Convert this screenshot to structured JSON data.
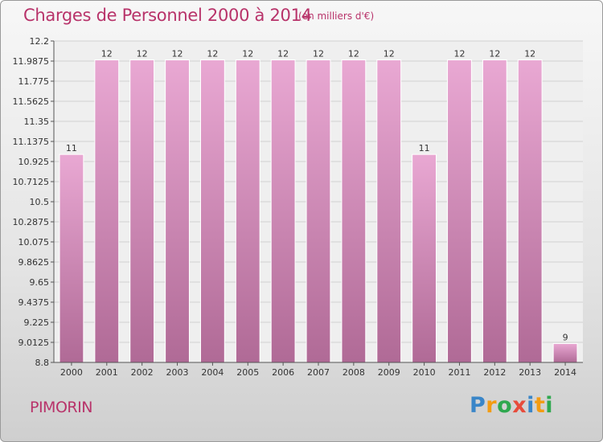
{
  "header": {
    "title": "Charges de Personnel 2000 à 2014",
    "subtitle": "(en milliers d'€)"
  },
  "footer": {
    "commune": "PIMORIN",
    "logo": [
      "P",
      "r",
      "o",
      "x",
      "i",
      "t",
      "i"
    ]
  },
  "colors": {
    "title": "#b8336a",
    "bar_top": "#e9a8d3",
    "bar_bottom": "#b06a96",
    "logo": [
      "#3a86c8",
      "#f39c12",
      "#2fa84f",
      "#e74c3c",
      "#3a86c8",
      "#f39c12",
      "#2fa84f"
    ]
  },
  "chart_data": {
    "type": "bar",
    "title": "Charges de Personnel 2000 à 2014",
    "subtitle": "(en milliers d'€)",
    "xlabel": "",
    "ylabel": "",
    "categories": [
      "2000",
      "2001",
      "2002",
      "2003",
      "2004",
      "2005",
      "2006",
      "2007",
      "2008",
      "2009",
      "2010",
      "2011",
      "2012",
      "2013",
      "2014"
    ],
    "values": [
      11,
      12,
      12,
      12,
      12,
      12,
      12,
      12,
      12,
      12,
      11,
      12,
      12,
      12,
      9
    ],
    "data_labels": [
      "11",
      "12",
      "12",
      "12",
      "12",
      "12",
      "12",
      "12",
      "12",
      "12",
      "11",
      "12",
      "12",
      "12",
      "9"
    ],
    "ylim": [
      8.8,
      12.2
    ],
    "yticks": [
      8.8,
      9.0125,
      9.225,
      9.4375,
      9.65,
      9.8625,
      10.075,
      10.2875,
      10.5,
      10.7125,
      10.925,
      11.1375,
      11.35,
      11.5625,
      11.775,
      11.9875,
      12.2
    ],
    "ytick_labels": [
      "8.8",
      "9.0125",
      "9.225",
      "9.4375",
      "9.65",
      "9.8625",
      "10.075",
      "10.2875",
      "10.5",
      "10.7125",
      "10.925",
      "11.1375",
      "11.35",
      "11.5625",
      "11.775",
      "11.9875",
      "12.2"
    ],
    "grid": true,
    "legend": "none"
  }
}
